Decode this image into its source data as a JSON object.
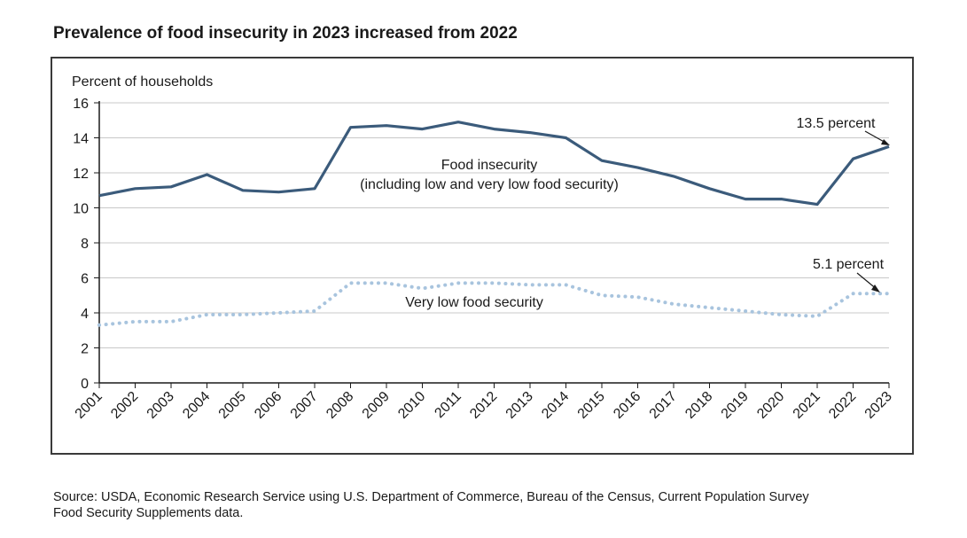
{
  "title": "Prevalence of food insecurity in 2023 increased from 2022",
  "source": {
    "line1": "Source: USDA, Economic Research Service using U.S. Department of Commerce, Bureau of the Census, Current Population Survey",
    "line2": "Food Security Supplements data."
  },
  "chart_data": {
    "type": "line",
    "title": "Prevalence of food insecurity in 2023 increased from 2022",
    "xlabel": "",
    "ylabel": "Percent of households",
    "ylim": [
      0,
      16
    ],
    "yticks": [
      0,
      2,
      4,
      6,
      8,
      10,
      12,
      14,
      16
    ],
    "grid": true,
    "categories": [
      "2001",
      "2002",
      "2003",
      "2004",
      "2005",
      "2006",
      "2007",
      "2008",
      "2009",
      "2010",
      "2011",
      "2012",
      "2013",
      "2014",
      "2015",
      "2016",
      "2017",
      "2018",
      "2019",
      "2020",
      "2021",
      "2022",
      "2023"
    ],
    "series": [
      {
        "name": "Food insecurity",
        "label_line1": "Food insecurity",
        "label_line2": "(including low and very low food security)",
        "style": "solid",
        "color": "#3b5b7b",
        "values": [
          10.7,
          11.1,
          11.2,
          11.9,
          11.0,
          10.9,
          11.1,
          14.6,
          14.7,
          14.5,
          14.9,
          14.5,
          14.3,
          14.0,
          12.7,
          12.3,
          11.8,
          11.1,
          10.5,
          10.5,
          10.2,
          12.8,
          13.5
        ]
      },
      {
        "name": "Very low food security",
        "label_line1": "Very low food security",
        "style": "dotted",
        "color": "#a8c4de",
        "values": [
          3.3,
          3.5,
          3.5,
          3.9,
          3.9,
          4.0,
          4.1,
          5.7,
          5.7,
          5.4,
          5.7,
          5.7,
          5.6,
          5.6,
          5.0,
          4.9,
          4.5,
          4.3,
          4.1,
          3.9,
          3.8,
          5.1,
          5.1
        ]
      }
    ],
    "annotations": [
      {
        "text": "13.5 percent",
        "series": 0,
        "category": "2023",
        "value": 13.5
      },
      {
        "text": "5.1 percent",
        "series": 1,
        "category": "2023",
        "value": 5.1
      }
    ]
  }
}
